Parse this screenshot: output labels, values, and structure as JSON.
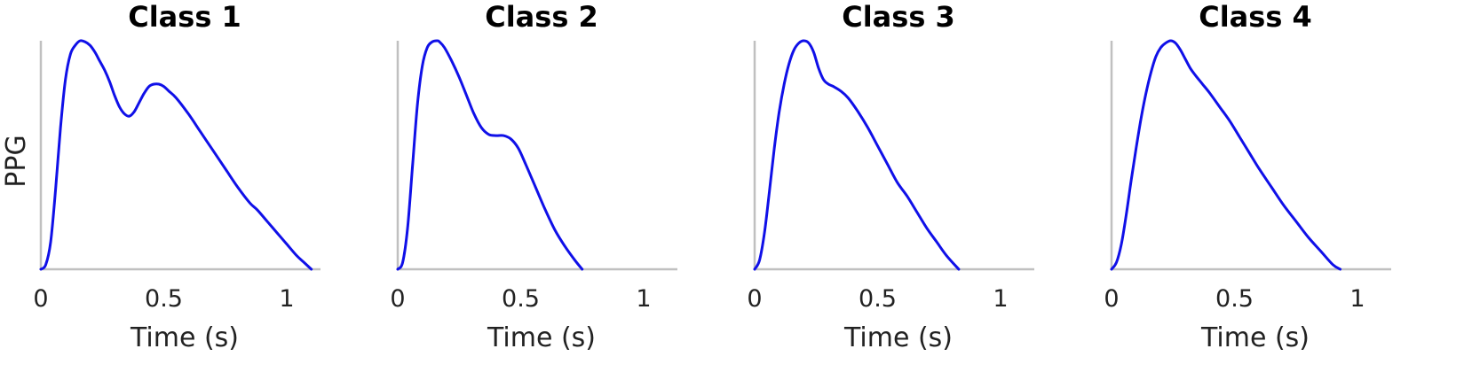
{
  "chart_data": [
    {
      "type": "line",
      "title": "Class 1",
      "xlabel": "Time (s)",
      "ylabel": "PPG",
      "xlim": [
        0,
        1.1
      ],
      "ylim": [
        0,
        1
      ],
      "xticks": [
        "0",
        "0.5",
        "1"
      ],
      "xtick_values": [
        0,
        0.5,
        1
      ],
      "grid": false,
      "color": "#1010e8",
      "series": [
        {
          "x": [
            0,
            0.02,
            0.04,
            0.06,
            0.08,
            0.1,
            0.12,
            0.14,
            0.16,
            0.18,
            0.2,
            0.22,
            0.24,
            0.26,
            0.28,
            0.3,
            0.32,
            0.34,
            0.36,
            0.38,
            0.4,
            0.42,
            0.44,
            0.46,
            0.48,
            0.5,
            0.52,
            0.55,
            0.6,
            0.65,
            0.7,
            0.75,
            0.8,
            0.85,
            0.88,
            0.92,
            0.96,
            1.0,
            1.04,
            1.07,
            1.1
          ],
          "y": [
            0,
            0.02,
            0.12,
            0.35,
            0.62,
            0.83,
            0.94,
            0.98,
            1.0,
            0.995,
            0.98,
            0.95,
            0.91,
            0.87,
            0.82,
            0.76,
            0.71,
            0.68,
            0.67,
            0.69,
            0.73,
            0.77,
            0.8,
            0.81,
            0.81,
            0.8,
            0.78,
            0.75,
            0.68,
            0.6,
            0.52,
            0.44,
            0.36,
            0.29,
            0.26,
            0.21,
            0.16,
            0.11,
            0.06,
            0.03,
            0
          ]
        }
      ]
    },
    {
      "type": "line",
      "title": "Class 2",
      "xlabel": "Time (s)",
      "ylabel": "",
      "xlim": [
        0,
        1.1
      ],
      "ylim": [
        0,
        1
      ],
      "xticks": [
        "0",
        "0.5",
        "1"
      ],
      "xtick_values": [
        0,
        0.5,
        1
      ],
      "grid": false,
      "color": "#1010e8",
      "series": [
        {
          "x": [
            0,
            0.02,
            0.04,
            0.06,
            0.08,
            0.1,
            0.12,
            0.14,
            0.16,
            0.17,
            0.19,
            0.22,
            0.25,
            0.28,
            0.31,
            0.34,
            0.37,
            0.4,
            0.43,
            0.46,
            0.49,
            0.52,
            0.56,
            0.6,
            0.64,
            0.68,
            0.72,
            0.75
          ],
          "y": [
            0,
            0.03,
            0.18,
            0.45,
            0.72,
            0.89,
            0.97,
            0.995,
            1.0,
            0.995,
            0.97,
            0.91,
            0.84,
            0.76,
            0.68,
            0.62,
            0.59,
            0.585,
            0.585,
            0.57,
            0.53,
            0.46,
            0.36,
            0.26,
            0.17,
            0.1,
            0.04,
            0
          ]
        }
      ]
    },
    {
      "type": "line",
      "title": "Class 3",
      "xlabel": "Time (s)",
      "ylabel": "",
      "xlim": [
        0,
        1.1
      ],
      "ylim": [
        0,
        1
      ],
      "xticks": [
        "0",
        "0.5",
        "1"
      ],
      "xtick_values": [
        0,
        0.5,
        1
      ],
      "grid": false,
      "color": "#1010e8",
      "series": [
        {
          "x": [
            0,
            0.02,
            0.04,
            0.06,
            0.08,
            0.1,
            0.12,
            0.14,
            0.16,
            0.18,
            0.2,
            0.22,
            0.24,
            0.26,
            0.28,
            0.3,
            0.32,
            0.35,
            0.38,
            0.42,
            0.46,
            0.5,
            0.54,
            0.58,
            0.62,
            0.66,
            0.7,
            0.74,
            0.78,
            0.83
          ],
          "y": [
            0,
            0.04,
            0.16,
            0.34,
            0.53,
            0.69,
            0.81,
            0.9,
            0.96,
            0.99,
            1.0,
            0.99,
            0.95,
            0.88,
            0.83,
            0.81,
            0.8,
            0.78,
            0.75,
            0.69,
            0.62,
            0.54,
            0.46,
            0.38,
            0.32,
            0.25,
            0.18,
            0.12,
            0.06,
            0
          ]
        }
      ]
    },
    {
      "type": "line",
      "title": "Class 4",
      "xlabel": "Time (s)",
      "ylabel": "",
      "xlim": [
        0,
        1.1
      ],
      "ylim": [
        0,
        1
      ],
      "xticks": [
        "0",
        "0.5",
        "1"
      ],
      "xtick_values": [
        0,
        0.5,
        1
      ],
      "grid": false,
      "color": "#1010e8",
      "series": [
        {
          "x": [
            0,
            0.02,
            0.04,
            0.06,
            0.08,
            0.1,
            0.12,
            0.14,
            0.16,
            0.18,
            0.2,
            0.22,
            0.24,
            0.26,
            0.28,
            0.3,
            0.32,
            0.34,
            0.37,
            0.4,
            0.44,
            0.48,
            0.52,
            0.56,
            0.6,
            0.65,
            0.7,
            0.75,
            0.8,
            0.85,
            0.9,
            0.93
          ],
          "y": [
            0,
            0.03,
            0.11,
            0.24,
            0.39,
            0.53,
            0.66,
            0.77,
            0.86,
            0.93,
            0.97,
            0.99,
            1.0,
            0.99,
            0.96,
            0.92,
            0.88,
            0.85,
            0.81,
            0.77,
            0.71,
            0.65,
            0.58,
            0.51,
            0.44,
            0.36,
            0.28,
            0.21,
            0.14,
            0.08,
            0.02,
            0
          ]
        }
      ]
    }
  ]
}
